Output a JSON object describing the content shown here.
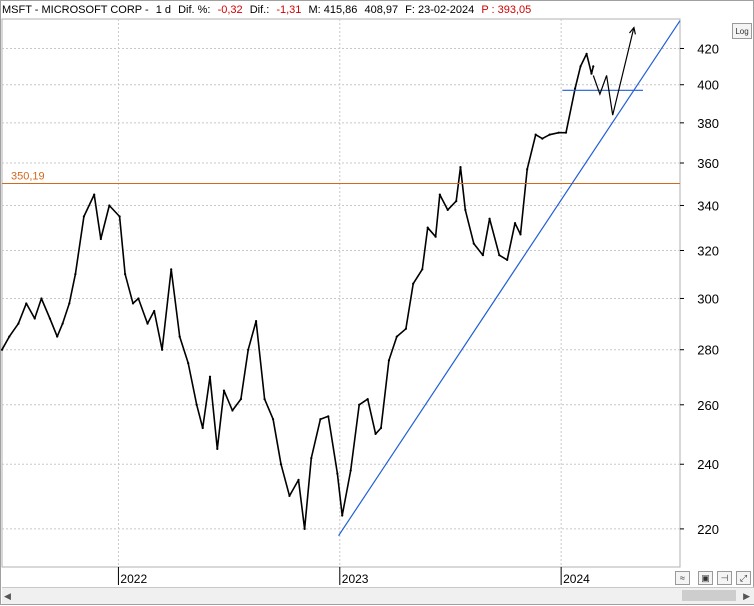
{
  "header": {
    "symbol": "MSFT - MICROSOFT CORP -",
    "interval": "1 d",
    "dif_pct_label": "Dif. %:",
    "dif_pct_value": "-0,32",
    "dif_label": "Dif.:",
    "dif_value": "-1,31",
    "m_label": "M: 415,86",
    "m2_label": "408,97",
    "f_label": "F: 23-02-2024",
    "p_label": "P : 393,05"
  },
  "controls": {
    "log_label": "Log"
  },
  "colors": {
    "price": "#000000",
    "horizontal_line": "#d2691e",
    "trendline": "#1f5fd6",
    "support": "#1f5fd6",
    "grid": "#c8c8c8"
  },
  "chart_data": {
    "type": "line",
    "title": "MSFT - MICROSOFT CORP",
    "y_scale": "log",
    "ylim": [
      209,
      437
    ],
    "y_ticks": [
      220,
      240,
      260,
      280,
      300,
      320,
      340,
      360,
      380,
      400,
      420
    ],
    "y_tick_labels": [
      "220",
      "240",
      "260",
      "280",
      "300",
      "320",
      "340",
      "360",
      "380",
      "400",
      "420"
    ],
    "x_range": [
      "2021-06-23",
      "2024-07-15"
    ],
    "x_ticks": [
      "2022-01-01",
      "2023-01-01",
      "2024-01-01"
    ],
    "x_tick_labels": [
      "2022",
      "2023",
      "2024"
    ],
    "grid": true,
    "series": [
      {
        "values": [
          [
            "2021-06-23",
            280
          ],
          [
            "2021-07-05",
            285
          ],
          [
            "2021-07-20",
            290
          ],
          [
            "2021-08-02",
            298
          ],
          [
            "2021-08-16",
            292
          ],
          [
            "2021-08-27",
            300
          ],
          [
            "2021-09-10",
            292
          ],
          [
            "2021-09-22",
            285
          ],
          [
            "2021-10-01",
            290
          ],
          [
            "2021-10-12",
            298
          ],
          [
            "2021-10-22",
            310
          ],
          [
            "2021-11-05",
            335
          ],
          [
            "2021-11-22",
            345
          ],
          [
            "2021-12-03",
            325
          ],
          [
            "2021-12-17",
            340
          ],
          [
            "2022-01-03",
            335
          ],
          [
            "2022-01-12",
            310
          ],
          [
            "2022-01-25",
            298
          ],
          [
            "2022-02-03",
            300
          ],
          [
            "2022-02-18",
            290
          ],
          [
            "2022-03-01",
            295
          ],
          [
            "2022-03-14",
            280
          ],
          [
            "2022-03-29",
            312
          ],
          [
            "2022-04-12",
            285
          ],
          [
            "2022-04-26",
            275
          ],
          [
            "2022-05-10",
            260
          ],
          [
            "2022-05-20",
            252
          ],
          [
            "2022-06-01",
            270
          ],
          [
            "2022-06-13",
            245
          ],
          [
            "2022-06-24",
            265
          ],
          [
            "2022-07-08",
            258
          ],
          [
            "2022-07-22",
            262
          ],
          [
            "2022-08-03",
            280
          ],
          [
            "2022-08-16",
            291
          ],
          [
            "2022-08-30",
            262
          ],
          [
            "2022-09-13",
            255
          ],
          [
            "2022-09-26",
            240
          ],
          [
            "2022-10-10",
            230
          ],
          [
            "2022-10-25",
            235
          ],
          [
            "2022-11-04",
            220
          ],
          [
            "2022-11-15",
            242
          ],
          [
            "2022-11-30",
            255
          ],
          [
            "2022-12-13",
            256
          ],
          [
            "2022-12-28",
            237
          ],
          [
            "2023-01-05",
            224
          ],
          [
            "2023-01-19",
            238
          ],
          [
            "2023-02-02",
            260
          ],
          [
            "2023-02-16",
            262
          ],
          [
            "2023-03-01",
            250
          ],
          [
            "2023-03-10",
            252
          ],
          [
            "2023-03-23",
            276
          ],
          [
            "2023-04-05",
            285
          ],
          [
            "2023-04-20",
            288
          ],
          [
            "2023-05-02",
            306
          ],
          [
            "2023-05-17",
            312
          ],
          [
            "2023-05-26",
            330
          ],
          [
            "2023-06-08",
            326
          ],
          [
            "2023-06-15",
            345
          ],
          [
            "2023-06-28",
            338
          ],
          [
            "2023-07-12",
            342
          ],
          [
            "2023-07-19",
            358
          ],
          [
            "2023-07-27",
            338
          ],
          [
            "2023-08-10",
            323
          ],
          [
            "2023-08-25",
            318
          ],
          [
            "2023-09-05",
            334
          ],
          [
            "2023-09-21",
            318
          ],
          [
            "2023-10-04",
            316
          ],
          [
            "2023-10-17",
            332
          ],
          [
            "2023-10-26",
            327
          ],
          [
            "2023-11-06",
            357
          ],
          [
            "2023-11-20",
            374
          ],
          [
            "2023-12-01",
            372
          ],
          [
            "2023-12-13",
            374
          ],
          [
            "2023-12-28",
            375
          ],
          [
            "2024-01-09",
            375
          ],
          [
            "2024-01-24",
            398
          ],
          [
            "2024-02-02",
            410
          ],
          [
            "2024-02-12",
            417
          ],
          [
            "2024-02-20",
            406
          ],
          [
            "2024-02-23",
            410
          ]
        ]
      }
    ],
    "horizontal_line": {
      "value": 350.19,
      "label": "350,19"
    },
    "trendline": {
      "from": [
        "2022-12-30",
        218
      ],
      "to": [
        "2024-07-15",
        436
      ]
    },
    "support_line": {
      "from": [
        "2024-01-03",
        397
      ],
      "to": [
        "2024-05-15",
        397
      ]
    },
    "projection": [
      [
        "2024-02-23",
        405
      ],
      [
        "2024-03-05",
        395
      ],
      [
        "2024-03-16",
        405
      ],
      [
        "2024-03-26",
        384
      ],
      [
        "2024-04-30",
        432
      ]
    ]
  }
}
